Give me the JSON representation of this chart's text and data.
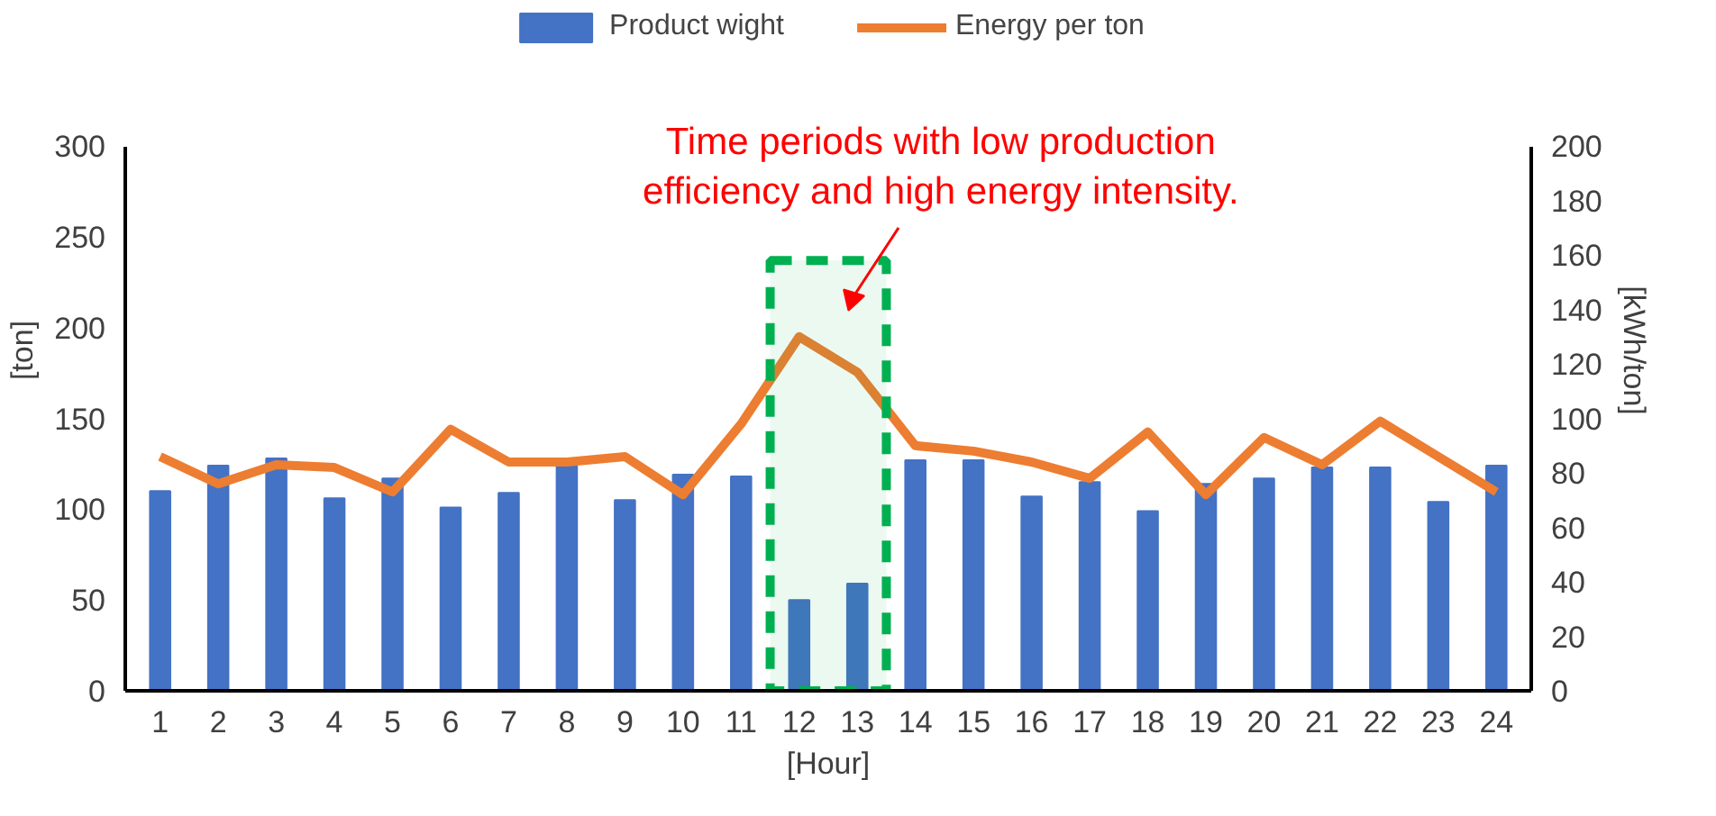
{
  "chart_data": {
    "type": "bar",
    "x": [
      1,
      2,
      3,
      4,
      5,
      6,
      7,
      8,
      9,
      10,
      11,
      12,
      13,
      14,
      15,
      16,
      17,
      18,
      19,
      20,
      21,
      22,
      23,
      24
    ],
    "xlim": [
      0.4,
      24.6
    ],
    "xticks": [
      1,
      2,
      3,
      4,
      5,
      6,
      7,
      8,
      9,
      10,
      11,
      12,
      13,
      14,
      15,
      16,
      17,
      18,
      19,
      20,
      21,
      22,
      23,
      24
    ],
    "xlabel": "[Hour]",
    "ylabel": "[ton]",
    "y2label": "[kWh/ton]",
    "ylim": [
      0,
      300
    ],
    "yticks": [
      0,
      50,
      100,
      150,
      200,
      250,
      300
    ],
    "y2lim": [
      0,
      200
    ],
    "y2ticks": [
      0,
      20,
      40,
      60,
      80,
      100,
      120,
      140,
      160,
      180,
      200
    ],
    "series": [
      {
        "name": "Product wight",
        "color": "#4472c4",
        "values": [
          110,
          124,
          128,
          106,
          117,
          101,
          109,
          124,
          105,
          119,
          118,
          50,
          59,
          127,
          127,
          107,
          115,
          99,
          114,
          117,
          123,
          123,
          104,
          124
        ]
      },
      {
        "name": "Energy per ton",
        "type": "line",
        "axis": "y2",
        "color": "#ed7d31",
        "values": [
          86,
          76,
          83,
          82,
          73,
          96,
          84,
          84,
          86,
          72,
          98,
          130,
          117,
          90,
          88,
          84,
          78,
          95,
          72,
          93,
          83,
          99,
          86,
          73
        ]
      }
    ],
    "bands": [
      {
        "axis": "x",
        "from": 11.5,
        "to": 13.5,
        "color": "#00b050"
      }
    ],
    "annotations": [
      "Time periods with low production efficiency and high energy intensity."
    ],
    "legend": "top",
    "grid": false,
    "marker": "none"
  }
}
